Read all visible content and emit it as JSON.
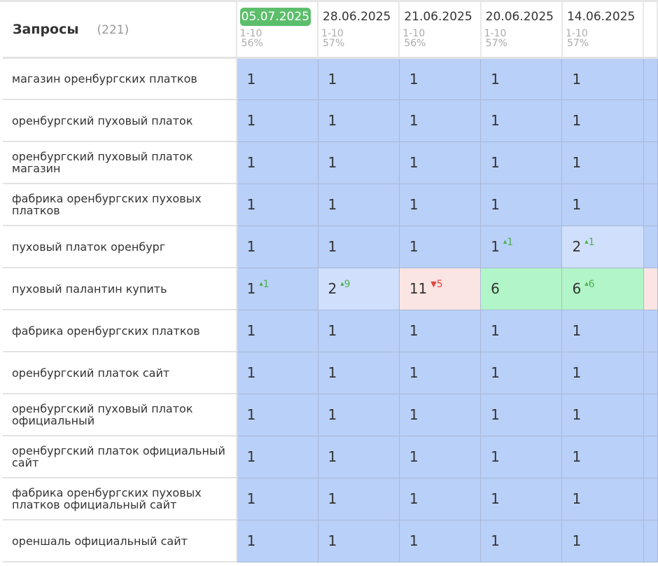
{
  "header": {
    "title": "Запросы",
    "count": "(221)"
  },
  "columns": [
    {
      "date": "05.07.2025",
      "range": "1-10",
      "percent": "56%",
      "current": true
    },
    {
      "date": "28.06.2025",
      "range": "1-10",
      "percent": "57%"
    },
    {
      "date": "21.06.2025",
      "range": "1-10",
      "percent": "56%"
    },
    {
      "date": "20.06.2025",
      "range": "1-10",
      "percent": "57%"
    },
    {
      "date": "14.06.2025",
      "range": "1-10",
      "percent": "57%"
    }
  ],
  "colors": {
    "top": "#b9d0f8",
    "good": "#d0dffb",
    "worse": "#fbe5e3",
    "better": "#b2f5c8",
    "current_date": "#5cbe6b"
  },
  "rows": [
    {
      "query": "магазин оренбургских платков",
      "cells": [
        {
          "v": "1",
          "c": "bl"
        },
        {
          "v": "1",
          "c": "bl"
        },
        {
          "v": "1",
          "c": "bl"
        },
        {
          "v": "1",
          "c": "bl"
        },
        {
          "v": "1",
          "c": "bl"
        }
      ]
    },
    {
      "query": "оренбургский пуховый платок",
      "cells": [
        {
          "v": "1",
          "c": "bl"
        },
        {
          "v": "1",
          "c": "bl"
        },
        {
          "v": "1",
          "c": "bl"
        },
        {
          "v": "1",
          "c": "bl"
        },
        {
          "v": "1",
          "c": "bl"
        }
      ]
    },
    {
      "query": "оренбургский пуховый платок магазин",
      "cells": [
        {
          "v": "1",
          "c": "bl"
        },
        {
          "v": "1",
          "c": "bl"
        },
        {
          "v": "1",
          "c": "bl"
        },
        {
          "v": "1",
          "c": "bl"
        },
        {
          "v": "1",
          "c": "bl"
        }
      ]
    },
    {
      "query": "фабрика оренбургских пуховых платков",
      "cells": [
        {
          "v": "1",
          "c": "bl"
        },
        {
          "v": "1",
          "c": "bl"
        },
        {
          "v": "1",
          "c": "bl"
        },
        {
          "v": "1",
          "c": "bl"
        },
        {
          "v": "1",
          "c": "bl"
        }
      ]
    },
    {
      "query": "пуховый платок оренбург",
      "cells": [
        {
          "v": "1",
          "c": "bl"
        },
        {
          "v": "1",
          "c": "bl"
        },
        {
          "v": "1",
          "c": "bl"
        },
        {
          "v": "1",
          "c": "bl",
          "d": "1",
          "dir": "up"
        },
        {
          "v": "2",
          "c": "lb",
          "d": "1",
          "dir": "up"
        }
      ]
    },
    {
      "query": "пуховый палантин купить",
      "cells": [
        {
          "v": "1",
          "c": "bl",
          "d": "1",
          "dir": "up"
        },
        {
          "v": "2",
          "c": "lb",
          "d": "9",
          "dir": "up"
        },
        {
          "v": "11",
          "c": "pk",
          "d": "5",
          "dir": "dn"
        },
        {
          "v": "6",
          "c": "gr"
        },
        {
          "v": "6",
          "c": "gr",
          "d": "6",
          "dir": "up"
        }
      ]
    },
    {
      "query": "фабрика оренбургских платков",
      "cells": [
        {
          "v": "1",
          "c": "bl"
        },
        {
          "v": "1",
          "c": "bl"
        },
        {
          "v": "1",
          "c": "bl"
        },
        {
          "v": "1",
          "c": "bl"
        },
        {
          "v": "1",
          "c": "bl"
        }
      ]
    },
    {
      "query": "оренбургский платок сайт",
      "cells": [
        {
          "v": "1",
          "c": "bl"
        },
        {
          "v": "1",
          "c": "bl"
        },
        {
          "v": "1",
          "c": "bl"
        },
        {
          "v": "1",
          "c": "bl"
        },
        {
          "v": "1",
          "c": "bl"
        }
      ]
    },
    {
      "query": "оренбургский пуховый платок официальный",
      "cells": [
        {
          "v": "1",
          "c": "bl"
        },
        {
          "v": "1",
          "c": "bl"
        },
        {
          "v": "1",
          "c": "bl"
        },
        {
          "v": "1",
          "c": "bl"
        },
        {
          "v": "1",
          "c": "bl"
        }
      ]
    },
    {
      "query": "оренбургский платок официальный сайт",
      "cells": [
        {
          "v": "1",
          "c": "bl"
        },
        {
          "v": "1",
          "c": "bl"
        },
        {
          "v": "1",
          "c": "bl"
        },
        {
          "v": "1",
          "c": "bl"
        },
        {
          "v": "1",
          "c": "bl"
        }
      ]
    },
    {
      "query": "фабрика оренбургских пуховых платков официальный сайт",
      "cells": [
        {
          "v": "1",
          "c": "bl"
        },
        {
          "v": "1",
          "c": "bl"
        },
        {
          "v": "1",
          "c": "bl"
        },
        {
          "v": "1",
          "c": "bl"
        },
        {
          "v": "1",
          "c": "bl"
        }
      ]
    },
    {
      "query": "ореншаль официальный сайт",
      "cells": [
        {
          "v": "1",
          "c": "bl"
        },
        {
          "v": "1",
          "c": "bl"
        },
        {
          "v": "1",
          "c": "bl"
        },
        {
          "v": "1",
          "c": "bl"
        },
        {
          "v": "1",
          "c": "bl"
        }
      ]
    }
  ]
}
